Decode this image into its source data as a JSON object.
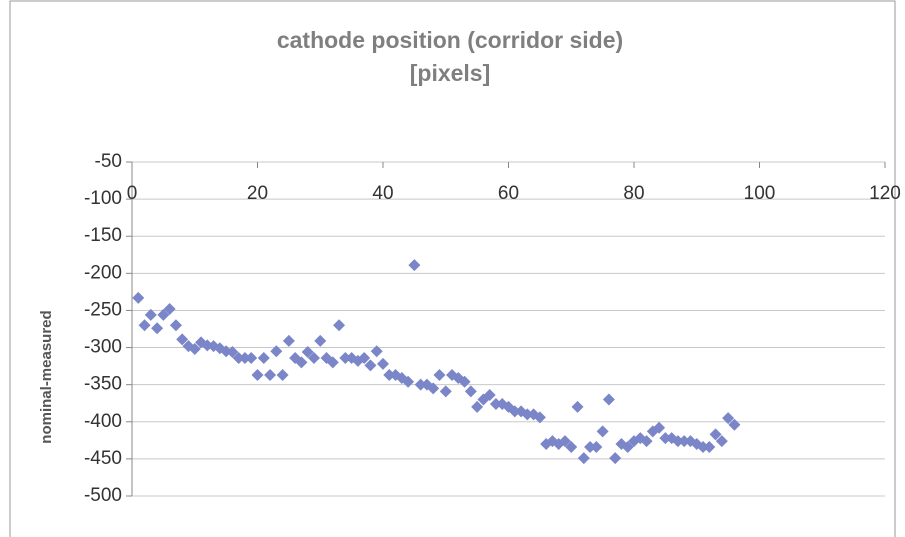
{
  "chart_data": {
    "type": "scatter",
    "title": "cathode position (corridor side)",
    "subtitle": "[pixels]",
    "y_label": "nominal-measured",
    "color": "#7b86c8",
    "grid": true,
    "xlim": [
      0,
      120
    ],
    "xticks": [
      0,
      20,
      40,
      60,
      80,
      100,
      120
    ],
    "ylim": [
      -500,
      -50
    ],
    "yticks": [
      -50,
      -100,
      -150,
      -200,
      -250,
      -300,
      -350,
      -400,
      -450,
      -500
    ],
    "x": [
      1,
      2,
      3,
      4,
      5,
      6,
      7,
      8,
      9,
      10,
      11,
      12,
      13,
      14,
      15,
      16,
      17,
      18,
      19,
      20,
      21,
      22,
      23,
      24,
      25,
      26,
      27,
      28,
      29,
      30,
      31,
      32,
      33,
      34,
      35,
      36,
      37,
      38,
      39,
      40,
      41,
      42,
      43,
      44,
      45,
      46,
      47,
      48,
      49,
      50,
      51,
      52,
      53,
      54,
      55,
      56,
      57,
      58,
      59,
      60,
      61,
      62,
      63,
      64,
      65,
      66,
      67,
      68,
      69,
      70,
      71,
      72,
      73,
      74,
      75,
      76,
      77,
      78,
      79,
      80,
      81,
      82,
      83,
      84,
      85,
      86,
      87,
      88,
      89,
      90,
      91,
      92,
      93,
      94,
      95,
      96
    ],
    "values": [
      -233,
      -270,
      -256,
      -274,
      -256,
      -248,
      -270,
      -289,
      -298,
      -302,
      -293,
      -297,
      -298,
      -301,
      -305,
      -306,
      -314,
      -314,
      -314,
      -337,
      -314,
      -337,
      -305,
      -337,
      -291,
      -314,
      -320,
      -306,
      -314,
      -291,
      -314,
      -320,
      -270,
      -314,
      -314,
      -318,
      -314,
      -324,
      -305,
      -322,
      -337,
      -337,
      -341,
      -346,
      -189,
      -350,
      -350,
      -355,
      -337,
      -359,
      -337,
      -341,
      -346,
      -359,
      -380,
      -370,
      -364,
      -376,
      -376,
      -380,
      -386,
      -386,
      -390,
      -390,
      -394,
      -430,
      -426,
      -430,
      -426,
      -434,
      -380,
      -449,
      -434,
      -434,
      -413,
      -370,
      -449,
      -430,
      -434,
      -426,
      -422,
      -426,
      -413,
      -408,
      -422,
      -422,
      -426,
      -426,
      -426,
      -430,
      -434,
      -434,
      -417,
      -426,
      -395,
      -404
    ]
  }
}
